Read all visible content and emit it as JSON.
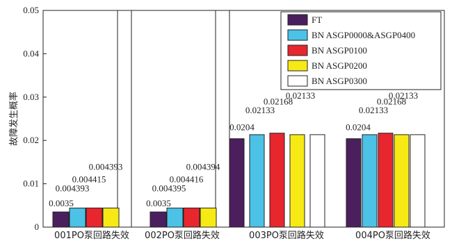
{
  "chart_data": {
    "type": "bar",
    "ylabel": "故障发生概率",
    "ylim": [
      0,
      0.05
    ],
    "yticks": [
      "0",
      "0.01",
      "0.02",
      "0.03",
      "0.04",
      "0.05"
    ],
    "categories": [
      "001PO泵回路失效",
      "002PO泵回路失效",
      "003PO泵回路失效",
      "004PO泵回路失效"
    ],
    "series": [
      {
        "name": "FT",
        "color": "#4b1f5e",
        "values": [
          0.0035,
          0.0035,
          0.0204,
          0.0204
        ]
      },
      {
        "name": "BN ASGP0000&ASGP0400",
        "color": "#4bc2e6",
        "values": [
          0.004393,
          0.004395,
          0.02133,
          0.02133
        ]
      },
      {
        "name": "BN ASGP0100",
        "color": "#e8262e",
        "values": [
          0.004415,
          0.004416,
          0.02168,
          0.02168
        ]
      },
      {
        "name": "BN ASGP0200",
        "color": "#f7ea14",
        "values": [
          0.004393,
          0.004394,
          0.02133,
          0.02133
        ]
      },
      {
        "name": "BN ASGP0300",
        "color": "#ffffff",
        "values": [
          null,
          null,
          0.02133,
          0.02133
        ]
      }
    ],
    "data_labels": [
      [
        "0.0035",
        "0.004393",
        "0.004415",
        "0.004393"
      ],
      [
        "0.0035",
        "0.004395",
        "0.004416",
        "0.004394"
      ],
      [
        "0.0204",
        "0.02133",
        "0.02168",
        "0.02133",
        "0.02133"
      ],
      [
        "0.0204",
        "0.02133",
        "0.02168",
        "0.02133",
        "0.02133"
      ]
    ],
    "legend_position": "top-right",
    "grid": false
  }
}
